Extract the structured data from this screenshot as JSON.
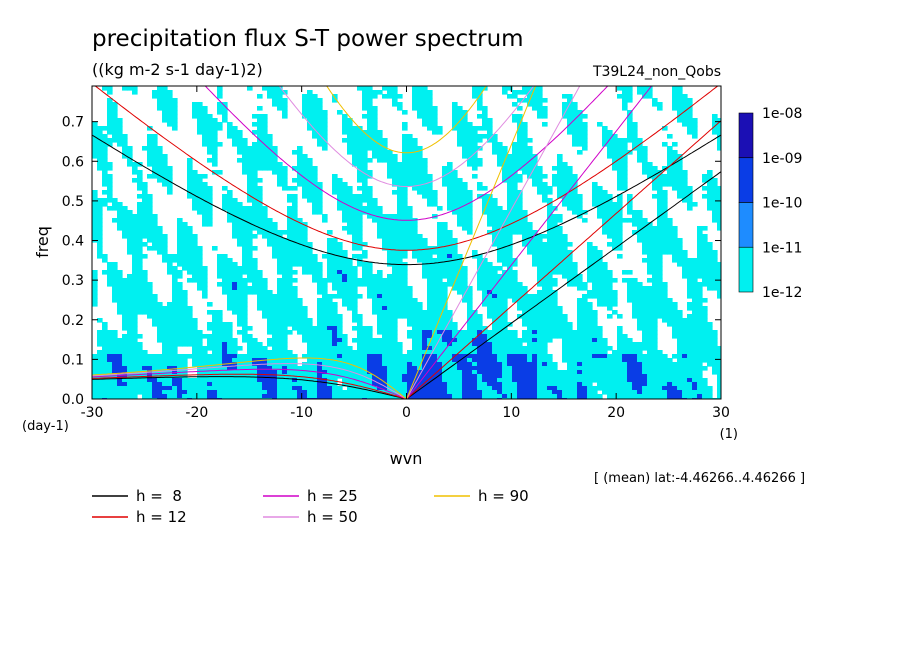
{
  "chart_data": {
    "type": "heatmap",
    "title": "precipitation flux S-T power spectrum",
    "subtitle": "((kg m-2 s-1 day-1)2)",
    "run_label": "T39L24_non_Qobs",
    "xlabel": "wvn",
    "x_unit": "(1)",
    "ylabel": "freq",
    "y_unit": "(day-1)",
    "xlim": [
      -30,
      30
    ],
    "ylim": [
      0,
      0.79
    ],
    "x_ticks": [
      -30,
      -20,
      -10,
      0,
      10,
      20,
      30
    ],
    "x_tick_labels": [
      "-30",
      "-20",
      "-10",
      "0",
      "10",
      "20",
      "30"
    ],
    "y_ticks": [
      0,
      0.1,
      0.2,
      0.3,
      0.4,
      0.5,
      0.6,
      0.7
    ],
    "y_tick_labels": [
      "0.0",
      "0.1",
      "0.2",
      "0.3",
      "0.4",
      "0.5",
      "0.6",
      "0.7"
    ],
    "colorbar": {
      "labels": [
        "1e-08",
        "1e-09",
        "1e-10",
        "1e-11",
        "1e-12"
      ],
      "colors": [
        "#4b0fb0",
        "#1b0fb4",
        "#0a3de6",
        "#1e8cff",
        "#00f0f0"
      ]
    },
    "note": "[ (mean) lat:-4.46266..4.46266 ]",
    "dispersion_curves": [
      {
        "label": "h =  8",
        "h": 8,
        "color": "#000000"
      },
      {
        "label": "h = 12",
        "h": 12,
        "color": "#e00000"
      },
      {
        "label": "h = 25",
        "h": 25,
        "color": "#d000c8"
      },
      {
        "label": "h = 50",
        "h": 50,
        "color": "#e08ce0"
      },
      {
        "label": "h = 90",
        "h": 90,
        "color": "#f0c000"
      }
    ]
  }
}
